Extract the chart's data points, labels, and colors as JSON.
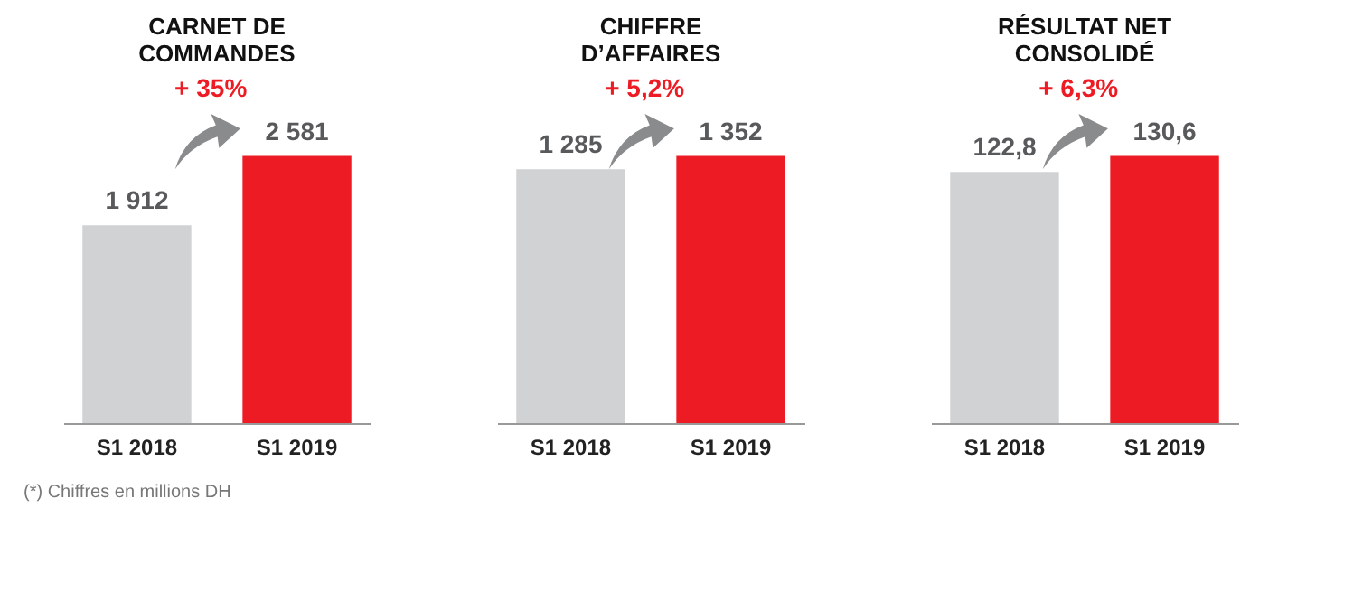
{
  "chart_data": [
    {
      "type": "bar",
      "title": "CARNET DE COMMANDES",
      "categories": [
        "S1 2018",
        "S1 2019"
      ],
      "values": [
        1912,
        2581
      ],
      "colors": [
        "#d1d2d4",
        "#ed1c24"
      ],
      "value_labels": [
        "1 912",
        "2 581"
      ],
      "tick_labels": "x",
      "annotations": [
        "+ 35%",
        "(*) Chiffres en millions DH"
      ]
    },
    {
      "type": "bar",
      "title": "CHIFFRE D’AFFAIRES",
      "categories": [
        "S1 2018",
        "S1 2019"
      ],
      "values": [
        1285,
        1352
      ],
      "colors": [
        "#d1d2d4",
        "#ed1c24"
      ],
      "value_labels": [
        "1 285",
        "1 352"
      ],
      "tick_labels": "x",
      "annotations": [
        "+ 5,2%"
      ]
    },
    {
      "type": "bar",
      "title": "RÉSULTAT NET CONSOLIDÉ",
      "categories": [
        "S1 2018",
        "S1 2019"
      ],
      "values": [
        122.8,
        130.6
      ],
      "colors": [
        "#d1d2d4",
        "#ed1c24"
      ],
      "value_labels": [
        "122,8",
        "130,6"
      ],
      "tick_labels": "x",
      "annotations": [
        "+ 6,3%"
      ]
    }
  ]
}
